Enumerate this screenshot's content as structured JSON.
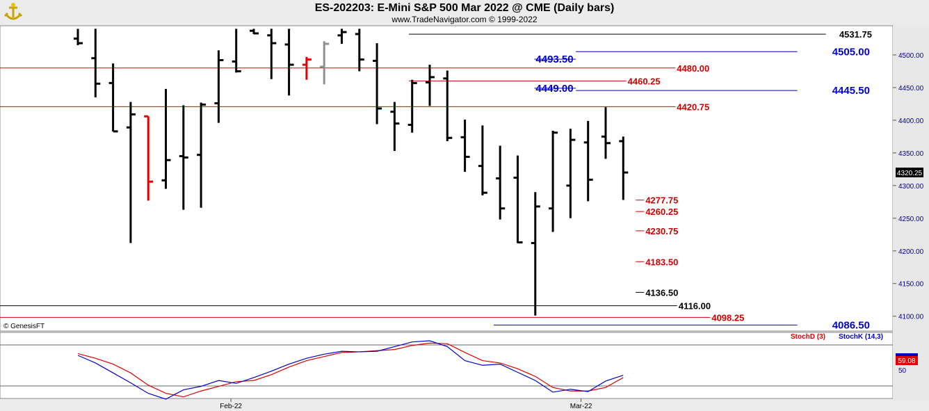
{
  "header": {
    "title": "ES-202203:  E-Mini S&P 500 Mar 2022 @ CME  (Daily bars)",
    "subtitle": "www.TradeNavigator.com © 1999-2022",
    "logo_icon": "anchor-trophy-logo"
  },
  "copyright": "© GenesisFT",
  "last_price_label": "4320.25",
  "stoch_last_label": "59.08",
  "colors": {
    "bar": "#000000",
    "bar_red": "#e00000",
    "bar_gray": "#909090",
    "level_red": "#d00000",
    "level_blue": "#0000cc",
    "level_black": "#000000",
    "stoch_d": "#e00000",
    "stoch_k": "#0000cc",
    "axis_text": "#0000a0"
  },
  "chart_data": {
    "type": "ohlc",
    "y_ticks": [
      "4500.00",
      "4450.00",
      "4400.00",
      "4350.00",
      "4300.00",
      "4250.00",
      "4200.00",
      "4150.00",
      "4100.00"
    ],
    "ylim": [
      4090,
      4540
    ],
    "x_labels": [
      "Feb-22",
      "Mar-22"
    ],
    "bars": [
      {
        "h": 4540,
        "l": 4515,
        "o": 4525,
        "c": 4518,
        "color": "black"
      },
      {
        "h": 4540,
        "l": 4435,
        "o": 4495,
        "c": 4456,
        "color": "black"
      },
      {
        "h": 4487,
        "l": 4383,
        "o": 4457,
        "c": 4383,
        "color": "black"
      },
      {
        "h": 4428,
        "l": 4212,
        "o": 4389,
        "c": 4409,
        "color": "black"
      },
      {
        "h": 4406,
        "l": 4277,
        "o": 4406,
        "c": 4306,
        "color": "red"
      },
      {
        "h": 4448,
        "l": 4295,
        "o": 4308,
        "c": 4339,
        "color": "black"
      },
      {
        "h": 4423,
        "l": 4263,
        "o": 4345,
        "c": 4343,
        "color": "black"
      },
      {
        "h": 4427,
        "l": 4266,
        "o": 4347,
        "c": 4424,
        "color": "black"
      },
      {
        "h": 4507,
        "l": 4396,
        "o": 4426,
        "c": 4492,
        "color": "black"
      },
      {
        "h": 4540,
        "l": 4473,
        "o": 4490,
        "c": 4475,
        "color": "black"
      },
      {
        "h": 4540,
        "l": 4532,
        "o": 4537,
        "c": 4533,
        "color": "black"
      },
      {
        "h": 4540,
        "l": 4463,
        "o": 4530,
        "c": 4518,
        "color": "black"
      },
      {
        "h": 4540,
        "l": 4438,
        "o": 4516,
        "c": 4485,
        "color": "black"
      },
      {
        "h": 4497,
        "l": 4462,
        "o": 4485,
        "c": 4493,
        "color": "red"
      },
      {
        "h": 4521,
        "l": 4455,
        "o": 4482,
        "c": 4517,
        "color": "gray"
      },
      {
        "h": 4540,
        "l": 4517,
        "o": 4530,
        "c": 4535,
        "color": "black"
      },
      {
        "h": 4540,
        "l": 4475,
        "o": 4532,
        "c": 4493,
        "color": "black"
      },
      {
        "h": 4518,
        "l": 4394,
        "o": 4491,
        "c": 4418,
        "color": "black"
      },
      {
        "h": 4428,
        "l": 4353,
        "o": 4413,
        "c": 4395,
        "color": "black"
      },
      {
        "h": 4462,
        "l": 4381,
        "o": 4393,
        "c": 4457,
        "color": "black"
      },
      {
        "h": 4485,
        "l": 4422,
        "o": 4458,
        "c": 4466,
        "color": "black"
      },
      {
        "h": 4476,
        "l": 4368,
        "o": 4464,
        "c": 4373,
        "color": "black"
      },
      {
        "h": 4401,
        "l": 4321,
        "o": 4374,
        "c": 4344,
        "color": "black"
      },
      {
        "h": 4392,
        "l": 4285,
        "o": 4330,
        "c": 4289,
        "color": "black"
      },
      {
        "h": 4361,
        "l": 4248,
        "o": 4311,
        "c": 4265,
        "color": "black"
      },
      {
        "h": 4346,
        "l": 4212,
        "o": 4312,
        "c": 4213,
        "color": "black"
      },
      {
        "h": 4290,
        "l": 4101,
        "o": 4212,
        "c": 4268,
        "color": "black"
      },
      {
        "h": 4384,
        "l": 4229,
        "o": 4265,
        "c": 4381,
        "color": "black"
      },
      {
        "h": 4387,
        "l": 4250,
        "o": 4300,
        "c": 4370,
        "color": "black"
      },
      {
        "h": 4399,
        "l": 4276,
        "o": 4366,
        "c": 4309,
        "color": "black"
      },
      {
        "h": 4420,
        "l": 4341,
        "o": 4375,
        "c": 4365,
        "color": "black"
      },
      {
        "h": 4375,
        "l": 4278,
        "o": 4368,
        "c": 4320,
        "color": "black"
      }
    ],
    "levels": [
      {
        "label": "4531.75",
        "value": 4531.75,
        "color": "black",
        "x0": 0.458,
        "x1": 0.925,
        "label_pos": 0.94
      },
      {
        "label": "4505.00",
        "value": 4505.0,
        "color": "blue",
        "x0": 0.645,
        "x1": 0.893,
        "label_pos": 0.932
      },
      {
        "label": "4493.50",
        "value": 4493.5,
        "color": "blue",
        "x0": 0.645,
        "x1": 0.893,
        "label_pos": 0.6
      },
      {
        "label": "4480.00",
        "value": 4480.0,
        "color": "red",
        "x0": 0.0,
        "x1": 0.966,
        "label_pos": 0.758
      },
      {
        "label": "4460.25",
        "value": 4460.25,
        "color": "red",
        "x0": 0.458,
        "x1": 0.966,
        "label_pos": 0.703
      },
      {
        "label": "4449.00",
        "value": 4449.0,
        "color": "blue",
        "x0": 0.645,
        "x1": 0.893,
        "label_pos": 0.6
      },
      {
        "label": "4445.50",
        "value": 4445.5,
        "color": "blue",
        "x0": 0.645,
        "x1": 0.893,
        "label_pos": 0.932
      },
      {
        "label": "4420.75",
        "value": 4420.75,
        "color": "red",
        "x0": 0.0,
        "x1": 0.966,
        "label_pos": 0.758
      },
      {
        "label": "4277.75",
        "value": 4277.75,
        "color": "red",
        "x0": 0.712,
        "x1": 0.966,
        "label_pos": 0.723
      },
      {
        "label": "4260.25",
        "value": 4260.25,
        "color": "red",
        "x0": 0.712,
        "x1": 0.966,
        "label_pos": 0.723
      },
      {
        "label": "4230.75",
        "value": 4230.75,
        "color": "red",
        "x0": 0.712,
        "x1": 0.966,
        "label_pos": 0.723
      },
      {
        "label": "4183.50",
        "value": 4183.5,
        "color": "red",
        "x0": 0.712,
        "x1": 0.966,
        "label_pos": 0.723
      },
      {
        "label": "4136.50",
        "value": 4136.5,
        "color": "black",
        "x0": 0.712,
        "x1": 0.966,
        "label_pos": 0.723
      },
      {
        "label": "4116.00",
        "value": 4116.0,
        "color": "black",
        "x0": 0.0,
        "x1": 0.966,
        "label_pos": 0.76
      },
      {
        "label": "4098.25",
        "value": 4098.25,
        "color": "red",
        "x0": 0.0,
        "x1": 0.966,
        "label_pos": 0.797
      },
      {
        "label": "4086.50",
        "value": 4086.5,
        "color": "blue",
        "x0": 0.553,
        "x1": 0.893,
        "label_pos": 0.932
      }
    ],
    "stoch": {
      "legend": [
        "StochD (3)",
        "StochK (14,3)"
      ],
      "ylim": [
        0,
        100
      ],
      "y_ticks": [
        "50"
      ],
      "stoch_k": [
        75,
        62,
        45,
        28,
        10,
        0,
        16,
        22,
        32,
        27,
        37,
        48,
        60,
        70,
        77,
        82,
        81,
        82,
        90,
        98,
        100,
        90,
        66,
        58,
        60,
        46,
        32,
        12,
        17,
        13,
        31,
        41
      ],
      "stoch_d": [
        78,
        70,
        60,
        45,
        24,
        10,
        4,
        14,
        22,
        30,
        32,
        42,
        55,
        66,
        73,
        80,
        81,
        83,
        85,
        92,
        96,
        95,
        80,
        66,
        62,
        52,
        39,
        20,
        14,
        14,
        20,
        37
      ]
    }
  }
}
